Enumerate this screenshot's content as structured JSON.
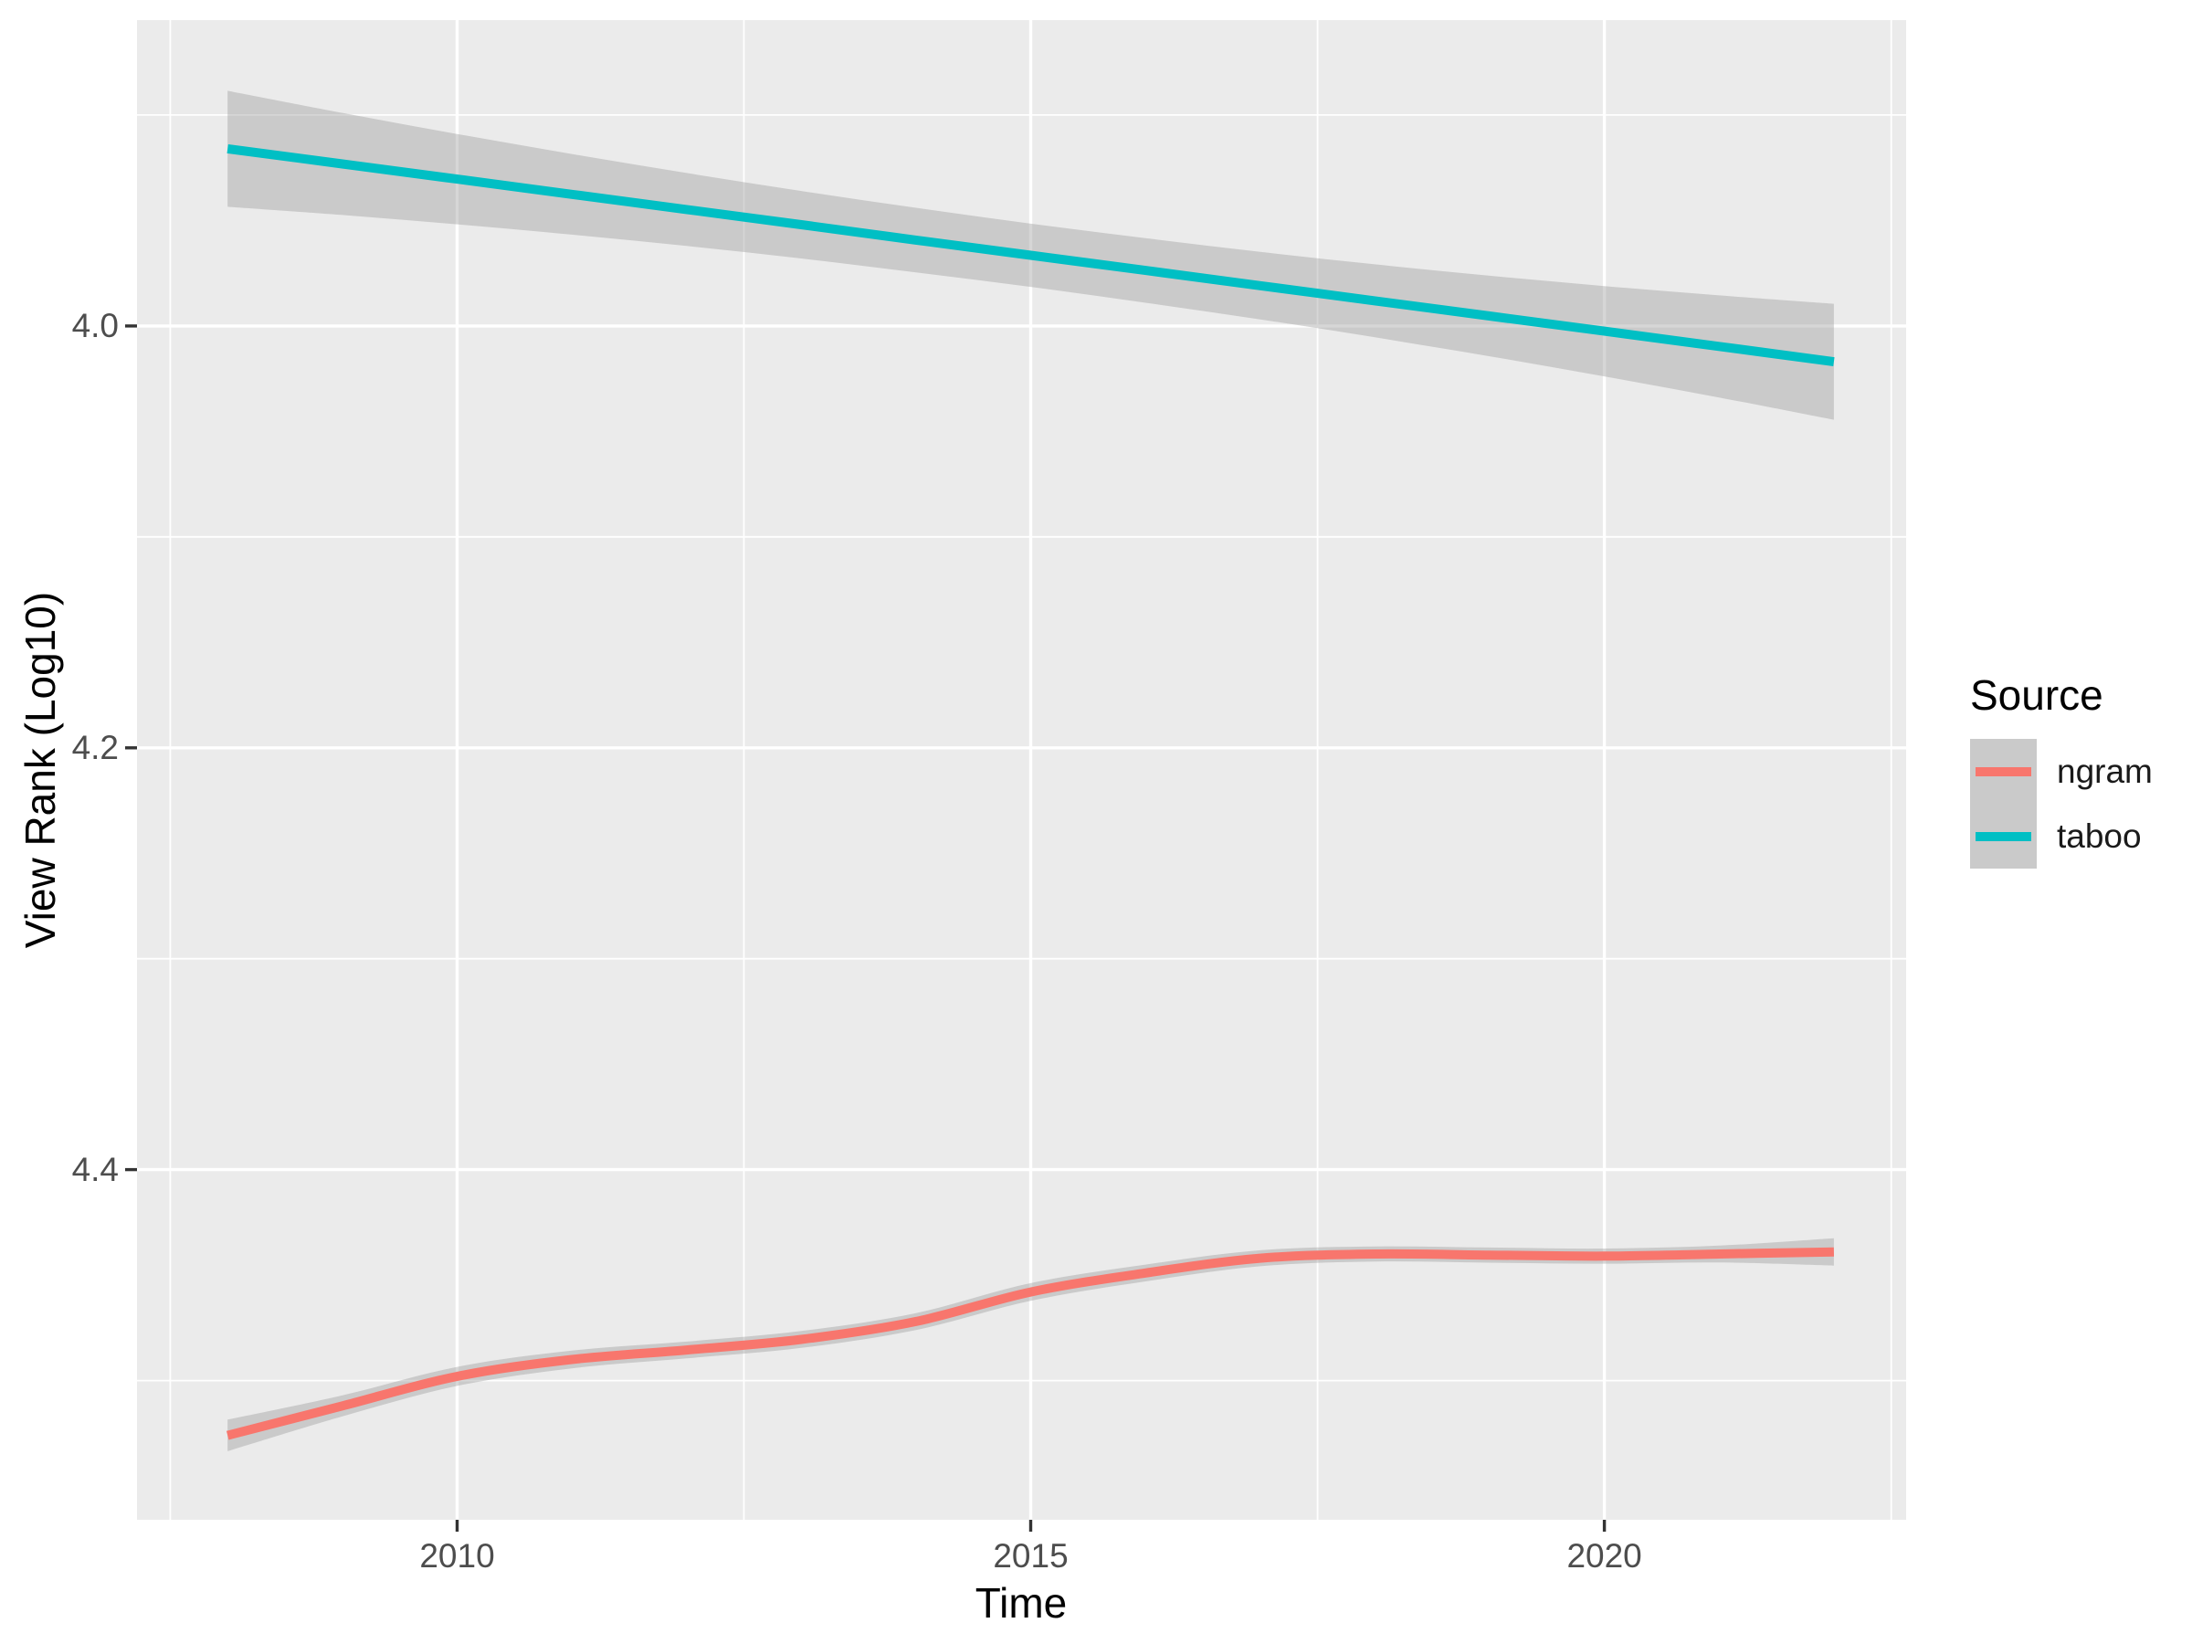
{
  "chart_data": {
    "type": "line",
    "xlabel": "Time",
    "ylabel": "View Rank (Log10)",
    "x_axis": {
      "label": "Time",
      "range": [
        2007.21,
        2022.63
      ],
      "major_ticks": [
        {
          "value": 2010,
          "label": "2010"
        },
        {
          "value": 2015,
          "label": "2015"
        },
        {
          "value": 2020,
          "label": "2020"
        }
      ],
      "minor_ticks": [
        2007.5,
        2012.5,
        2017.5,
        2022.5
      ]
    },
    "y_axis": {
      "label": "View Rank (Log10)",
      "reversed": true,
      "range": [
        3.855,
        4.566
      ],
      "major_ticks": [
        {
          "value": 4.0,
          "label": "4.0"
        },
        {
          "value": 4.2,
          "label": "4.2"
        },
        {
          "value": 4.4,
          "label": "4.4"
        }
      ],
      "minor_ticks": [
        3.9,
        4.1,
        4.3,
        4.5
      ]
    },
    "legend": {
      "title": "Source",
      "position": "right",
      "entries": [
        {
          "name": "ngram",
          "color": "#F8766D"
        },
        {
          "name": "taboo",
          "color": "#00BFC4"
        }
      ]
    },
    "style": {
      "panel_bg": "#EBEBEB",
      "grid_color": "#FFFFFF",
      "ribbon_color": "#999999",
      "ribbon_opacity": 0.4,
      "tick_color": "#333333",
      "tick_label_color": "#4D4D4D",
      "axis_title_color": "#000000"
    },
    "series": [
      {
        "name": "ngram",
        "color": "#F8766D",
        "smooth_method": "loess",
        "points": [
          {
            "x": 2008,
            "y": 4.526,
            "ymin": 4.5185,
            "ymax": 4.5335
          },
          {
            "x": 2009,
            "y": 4.512,
            "ymin": 4.507,
            "ymax": 4.517
          },
          {
            "x": 2010,
            "y": 4.498,
            "ymin": 4.4935,
            "ymax": 4.5025
          },
          {
            "x": 2011,
            "y": 4.49,
            "ymin": 4.4858,
            "ymax": 4.4942
          },
          {
            "x": 2012,
            "y": 4.4855,
            "ymin": 4.4815,
            "ymax": 4.4895
          },
          {
            "x": 2013,
            "y": 4.4805,
            "ymin": 4.4765,
            "ymax": 4.4845
          },
          {
            "x": 2014,
            "y": 4.472,
            "ymin": 4.468,
            "ymax": 4.476
          },
          {
            "x": 2015,
            "y": 4.458,
            "ymin": 4.4538,
            "ymax": 4.4622
          },
          {
            "x": 2016,
            "y": 4.449,
            "ymin": 4.445,
            "ymax": 4.453
          },
          {
            "x": 2017,
            "y": 4.442,
            "ymin": 4.4382,
            "ymax": 4.4458
          },
          {
            "x": 2018,
            "y": 4.44,
            "ymin": 4.4364,
            "ymax": 4.4436
          },
          {
            "x": 2019,
            "y": 4.4405,
            "ymin": 4.4369,
            "ymax": 4.4441
          },
          {
            "x": 2020,
            "y": 4.441,
            "ymin": 4.4374,
            "ymax": 4.4446
          },
          {
            "x": 2021,
            "y": 4.44,
            "ymin": 4.436,
            "ymax": 4.444
          },
          {
            "x": 2022,
            "y": 4.439,
            "ymin": 4.4325,
            "ymax": 4.4455
          }
        ]
      },
      {
        "name": "taboo",
        "color": "#00BFC4",
        "smooth_method": "lm",
        "points": [
          {
            "x": 2008,
            "y": 3.916,
            "ymin": 3.8885,
            "ymax": 3.9435
          },
          {
            "x": 2009,
            "y": 3.9232,
            "ymin": 3.899,
            "ymax": 3.9474
          },
          {
            "x": 2010,
            "y": 3.9304,
            "ymin": 3.909,
            "ymax": 3.9518
          },
          {
            "x": 2011,
            "y": 3.9376,
            "ymin": 3.9185,
            "ymax": 3.9567
          },
          {
            "x": 2012,
            "y": 3.9448,
            "ymin": 3.9275,
            "ymax": 3.9621
          },
          {
            "x": 2013,
            "y": 3.952,
            "ymin": 3.936,
            "ymax": 3.968
          },
          {
            "x": 2014,
            "y": 3.9593,
            "ymin": 3.944,
            "ymax": 3.9746
          },
          {
            "x": 2015,
            "y": 3.9665,
            "ymin": 3.9515,
            "ymax": 3.9815
          },
          {
            "x": 2016,
            "y": 3.9737,
            "ymin": 3.9584,
            "ymax": 3.989
          },
          {
            "x": 2017,
            "y": 3.9809,
            "ymin": 3.9649,
            "ymax": 3.9969
          },
          {
            "x": 2018,
            "y": 3.9881,
            "ymin": 3.9708,
            "ymax": 4.0054
          },
          {
            "x": 2019,
            "y": 3.9953,
            "ymin": 3.9762,
            "ymax": 4.0144
          },
          {
            "x": 2020,
            "y": 4.0025,
            "ymin": 3.9811,
            "ymax": 4.0239
          },
          {
            "x": 2021,
            "y": 4.0097,
            "ymin": 3.9855,
            "ymax": 4.0339
          },
          {
            "x": 2022,
            "y": 4.017,
            "ymin": 3.9895,
            "ymax": 4.0445
          }
        ]
      }
    ]
  }
}
